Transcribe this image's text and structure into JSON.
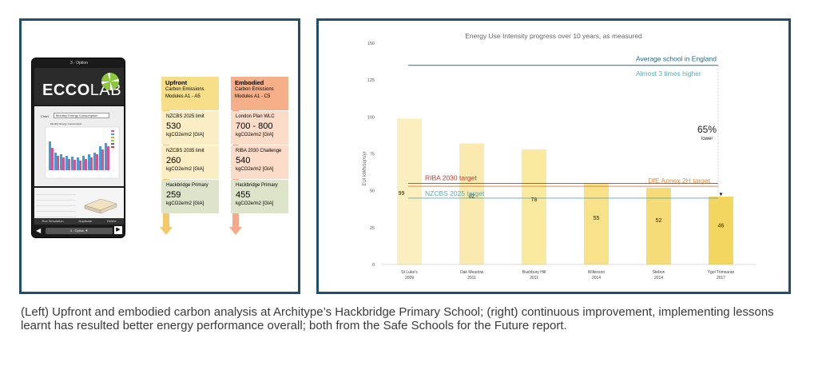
{
  "left": {
    "phone": {
      "top_label": "3 - Option",
      "logo_bold": "ECCO",
      "logo_rest": "LAB",
      "chart_label": "Chart",
      "chart_select": "Monthly Energy Consumption",
      "mini_chart_title": "Monthly Energy Consumption",
      "buttons": [
        "Run Simulation",
        "Duplicate",
        "Delete"
      ],
      "nav_option": "3 - Option"
    },
    "upfront": {
      "title": "Upfront",
      "line1": "Carbon Emissions",
      "line2": "Modules A1 - A5",
      "cards": [
        {
          "label": "NZCBS 2025 limit",
          "value": "530",
          "unit": "kgCO2e/m2 [GIA]"
        },
        {
          "label": "NZCBS 2035 limit",
          "value": "260",
          "unit": "kgCO2e/m2 [GIA]"
        },
        {
          "label": "Hackbridge Primary",
          "value": "259",
          "unit": "kgCO2e/m2 [GIA]"
        }
      ],
      "colors": {
        "head": "#f7df8a",
        "card": "#fbeec4",
        "card_last": "#dde4c9",
        "arrow": "#f4c96a"
      }
    },
    "embodied": {
      "title": "Embodied",
      "line1": "Carbon Emissions",
      "line2": "Modules A1 - C5",
      "cards": [
        {
          "label": "London Plan WLC",
          "value": "700 - 800",
          "unit": "kgCO2e/m2 [GIA]"
        },
        {
          "label": "RIBA 2030 Challenge",
          "value": "540",
          "unit": "kgCO2e/m2 [GIA]"
        },
        {
          "label": "Hackbridge Primary",
          "value": "455",
          "unit": "kgCO2e/m2 [GIA]"
        }
      ],
      "colors": {
        "head": "#f5b08a",
        "card": "#fbdcc8",
        "card_last": "#dde4c9",
        "arrow": "#f3a98a"
      }
    }
  },
  "chart_data": {
    "type": "bar",
    "title": "Energy Use Intensity progress over 10 years, as measured",
    "ylabel": "EUI kWh/sqm/yr",
    "ylim": [
      0,
      150
    ],
    "yticks": [
      0,
      25,
      50,
      75,
      100,
      125,
      150
    ],
    "categories": [
      {
        "name": "St Luke's",
        "year": "2009"
      },
      {
        "name": "Oak Meadow",
        "year": "2011"
      },
      {
        "name": "Bushbury Hill",
        "year": "2011"
      },
      {
        "name": "Wilkinson",
        "year": "2014"
      },
      {
        "name": "Stebon",
        "year": "2014"
      },
      {
        "name": "Ygol Trimsaran",
        "year": "2017"
      }
    ],
    "values": [
      99,
      82,
      78,
      55,
      52,
      46
    ],
    "bar_colors": [
      "#fbefc0",
      "#fbeab0",
      "#faea9f",
      "#f7e28a",
      "#f5dc78",
      "#f3d660"
    ],
    "reference_lines": [
      {
        "label": "Average school in England",
        "value": 135,
        "color": "#1e6b8a"
      },
      {
        "label": "RIBA 2030 target",
        "value": 55,
        "color": "#c0392b"
      },
      {
        "label": "DfE Annex 2H target",
        "value": 53,
        "color": "#e8893c"
      },
      {
        "label": "NZCBS 2025 target",
        "value": 45,
        "color": "#5fa8b0"
      }
    ],
    "annotations": {
      "almost": "Almost 3 times higher",
      "pct": "65%",
      "lower": "lower"
    }
  },
  "caption": "(Left) Upfront and embodied carbon analysis at Architype’s Hackbridge Primary School; (right) continuous improvement, implementing lessons learnt has resulted better energy performance overall; both from the Safe Schools for the Future report."
}
